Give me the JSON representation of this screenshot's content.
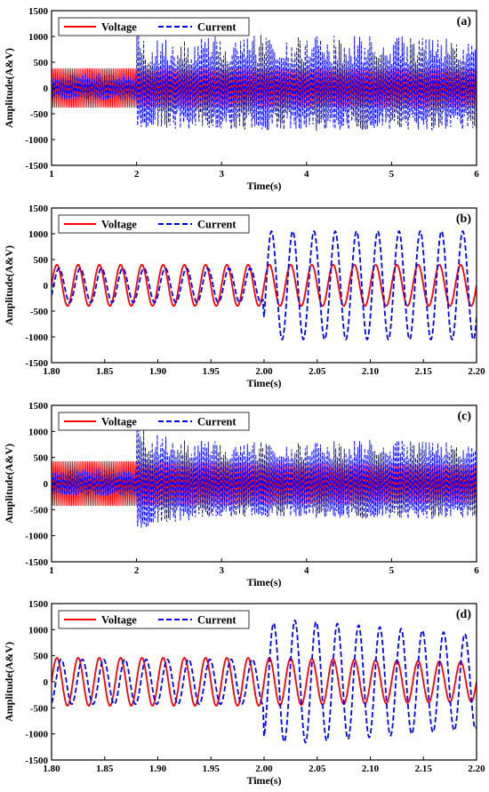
{
  "chart_data": [
    {
      "type": "line",
      "panel_label": "(a)",
      "xlabel": "Time(s)",
      "ylabel": "Amplitude(A&V)",
      "xlim": [
        1,
        6
      ],
      "ylim": [
        -1500,
        1500
      ],
      "xticks": [
        1,
        2,
        3,
        4,
        5,
        6
      ],
      "xtick_labels": [
        "1",
        "2",
        "3",
        "4",
        "5",
        "6"
      ],
      "yticks": [
        -1500,
        -1000,
        -500,
        0,
        500,
        1000,
        1500
      ],
      "ytick_labels": [
        "-1500",
        "-1000",
        "-500",
        "0",
        "500",
        "1000",
        "1500"
      ],
      "grid": false,
      "legend_position": "top-left",
      "series": [
        {
          "name": "Voltage",
          "color": "#ff0000",
          "style": "solid",
          "frequency_hz": 50,
          "envelope": {
            "t": [
              1,
              2,
              6
            ],
            "amplitude": [
              400,
              400,
              400
            ]
          }
        },
        {
          "name": "Current",
          "color": "#0000ff",
          "style": "dashed",
          "frequency_hz": 50,
          "noise": 0.55,
          "envelope": {
            "t": [
              1,
              1.999,
              2.0,
              2.1,
              3.4,
              6
            ],
            "amplitude": [
              300,
              300,
              1050,
              980,
              1030,
              1000
            ]
          }
        }
      ]
    },
    {
      "type": "line",
      "panel_label": "(b)",
      "xlabel": "Time(s)",
      "ylabel": "Amplitude(A&V)",
      "xlim": [
        1.8,
        2.2
      ],
      "ylim": [
        -1500,
        1500
      ],
      "xticks": [
        1.8,
        1.85,
        1.9,
        1.95,
        2.0,
        2.05,
        2.1,
        2.15,
        2.2
      ],
      "xtick_labels": [
        "1.80",
        "1.85",
        "1.90",
        "1.95",
        "2.00",
        "2.05",
        "2.10",
        "2.15",
        "2.20"
      ],
      "yticks": [
        -1500,
        -1000,
        -500,
        0,
        500,
        1000,
        1500
      ],
      "ytick_labels": [
        "-1500",
        "-1000",
        "-500",
        "0",
        "500",
        "1000",
        "1500"
      ],
      "grid": false,
      "legend_position": "top-left",
      "series": [
        {
          "name": "Voltage",
          "color": "#ff0000",
          "style": "solid",
          "frequency_hz": 50,
          "envelope": {
            "t": [
              1.8,
              2.2
            ],
            "amplitude": [
              400,
              400
            ]
          }
        },
        {
          "name": "Current",
          "color": "#0000ff",
          "style": "dashed",
          "frequency_hz": 50,
          "phase_lag_s": 0.002,
          "envelope": {
            "t": [
              1.8,
              1.999,
              2.0,
              2.2
            ],
            "amplitude": [
              330,
              330,
              1050,
              1050
            ]
          }
        }
      ]
    },
    {
      "type": "line",
      "panel_label": "(c)",
      "xlabel": "Time(s)",
      "ylabel": "Amplitude(A&V)",
      "xlim": [
        1,
        6
      ],
      "ylim": [
        -1500,
        1500
      ],
      "xticks": [
        1,
        2,
        3,
        4,
        5,
        6
      ],
      "xtick_labels": [
        "1",
        "2",
        "3",
        "4",
        "5",
        "6"
      ],
      "yticks": [
        -1500,
        -1000,
        -500,
        0,
        500,
        1000,
        1500
      ],
      "ytick_labels": [
        "-1500",
        "-1000",
        "-500",
        "0",
        "500",
        "1000",
        "1500"
      ],
      "grid": false,
      "legend_position": "top-left",
      "series": [
        {
          "name": "Voltage",
          "color": "#ff0000",
          "style": "solid",
          "frequency_hz": 50,
          "envelope": {
            "t": [
              1,
              2,
              6
            ],
            "amplitude": [
              450,
              450,
              380
            ]
          }
        },
        {
          "name": "Current",
          "color": "#0000ff",
          "style": "dashed",
          "frequency_hz": 50,
          "noise": 0.45,
          "envelope": {
            "t": [
              1,
              1.999,
              2.0,
              2.3,
              3.0,
              4.0,
              5.0,
              6.0
            ],
            "amplitude": [
              300,
              300,
              1150,
              950,
              800,
              800,
              850,
              800
            ]
          }
        }
      ]
    },
    {
      "type": "line",
      "panel_label": "(d)",
      "xlabel": "Time(s)",
      "ylabel": "Amplitude(A&V)",
      "xlim": [
        1.8,
        2.2
      ],
      "ylim": [
        -1500,
        1500
      ],
      "xticks": [
        1.8,
        1.85,
        1.9,
        1.95,
        2.0,
        2.05,
        2.1,
        2.15,
        2.2
      ],
      "xtick_labels": [
        "1.80",
        "1.85",
        "1.90",
        "1.95",
        "2.00",
        "2.05",
        "2.10",
        "2.15",
        "2.20"
      ],
      "yticks": [
        -1500,
        -1000,
        -500,
        0,
        500,
        1000,
        1500
      ],
      "ytick_labels": [
        "-1500",
        "-1000",
        "-500",
        "0",
        "500",
        "1000",
        "1500"
      ],
      "grid": false,
      "legend_position": "top-left",
      "series": [
        {
          "name": "Voltage",
          "color": "#ff0000",
          "style": "solid",
          "frequency_hz": 50,
          "envelope": {
            "t": [
              1.8,
              2.0,
              2.2
            ],
            "amplitude": [
              460,
              460,
              380
            ]
          }
        },
        {
          "name": "Current",
          "color": "#0000ff",
          "style": "dashed",
          "frequency_hz": 50,
          "phase_lag_s": 0.004,
          "envelope": {
            "t": [
              1.8,
              1.999,
              2.0,
              2.03,
              2.2
            ],
            "amplitude": [
              430,
              430,
              1100,
              1180,
              900
            ]
          }
        }
      ]
    }
  ]
}
